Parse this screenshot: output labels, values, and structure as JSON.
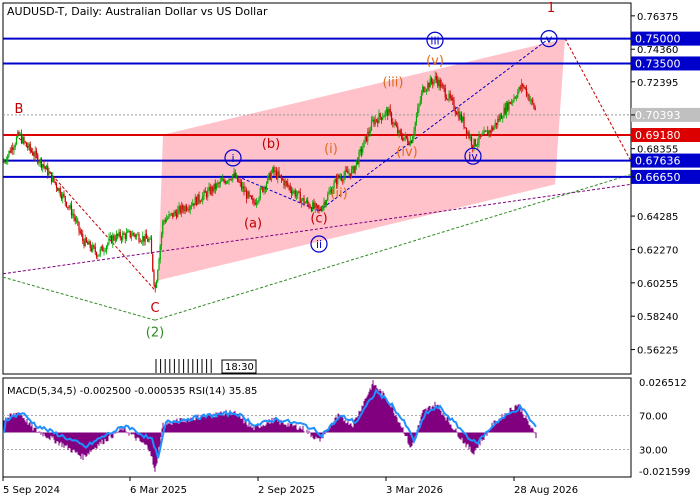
{
  "title": "AUDUSD-T, Daily:  Australian Dollar vs US Dollar",
  "macd_label": "MACD(5,34,5) -0.002500 -0.000535 RSI(14) 35.85",
  "time_box": "18:30",
  "colors": {
    "blue_level": "#0000cc",
    "red_level": "#dd0000",
    "channel_fill": "#ffb6c1",
    "bull_candle": "#00aa00",
    "bear_candle": "#cc0000",
    "macd_hist": "#800080",
    "macd_line": "#1e90ff",
    "wave_green": "#2e8b22",
    "wave_red": "#c00000",
    "wave_orange": "#e06a1a",
    "wave_blue": "#0000cc",
    "price_tag": "#c0c0c0"
  },
  "chart_data": {
    "type": "candlestick",
    "symbol": "AUDUSD-T",
    "timeframe": "Daily",
    "x_ticks": [
      "5 Sep 2024",
      "6 Mar 2025",
      "2 Sep 2025",
      "3 Mar 2026",
      "28 Aug 2026"
    ],
    "y_ticks": [
      0.76375,
      0.7436,
      0.72395,
      0.70393,
      0.68355,
      0.6665,
      0.64285,
      0.6227,
      0.60255,
      0.5824,
      0.56225
    ],
    "y_range": [
      0.5475,
      0.7715
    ],
    "current_price": 0.70393,
    "levels": [
      {
        "value": 0.75,
        "label": "0.75000",
        "color": "#0000cc"
      },
      {
        "value": 0.735,
        "label": "0.73500",
        "color": "#0000cc"
      },
      {
        "value": 0.6918,
        "label": "0.69180",
        "color": "#dd0000"
      },
      {
        "value": 0.67636,
        "label": "0.67636",
        "color": "#0000cc"
      },
      {
        "value": 0.6665,
        "label": "0.66650",
        "color": "#0000cc"
      }
    ],
    "price_path": [
      {
        "t": 0,
        "v": 0.675
      },
      {
        "t": 16,
        "v": 0.692
      },
      {
        "t": 20,
        "v": 0.688
      },
      {
        "t": 40,
        "v": 0.674
      },
      {
        "t": 55,
        "v": 0.66
      },
      {
        "t": 70,
        "v": 0.644
      },
      {
        "t": 80,
        "v": 0.628
      },
      {
        "t": 95,
        "v": 0.62
      },
      {
        "t": 110,
        "v": 0.63
      },
      {
        "t": 130,
        "v": 0.632
      },
      {
        "t": 147,
        "v": 0.628
      },
      {
        "t": 152,
        "v": 0.598
      },
      {
        "t": 160,
        "v": 0.64
      },
      {
        "t": 200,
        "v": 0.655
      },
      {
        "t": 230,
        "v": 0.668
      },
      {
        "t": 250,
        "v": 0.65
      },
      {
        "t": 270,
        "v": 0.67
      },
      {
        "t": 300,
        "v": 0.652
      },
      {
        "t": 316,
        "v": 0.646
      },
      {
        "t": 335,
        "v": 0.666
      },
      {
        "t": 350,
        "v": 0.67
      },
      {
        "t": 370,
        "v": 0.7
      },
      {
        "t": 385,
        "v": 0.706
      },
      {
        "t": 396,
        "v": 0.692
      },
      {
        "t": 408,
        "v": 0.688
      },
      {
        "t": 420,
        "v": 0.72
      },
      {
        "t": 433,
        "v": 0.726
      },
      {
        "t": 448,
        "v": 0.712
      },
      {
        "t": 460,
        "v": 0.7
      },
      {
        "t": 470,
        "v": 0.686
      },
      {
        "t": 490,
        "v": 0.696
      },
      {
        "t": 505,
        "v": 0.71
      },
      {
        "t": 520,
        "v": 0.722
      },
      {
        "t": 533,
        "v": 0.706
      }
    ],
    "waves": [
      {
        "label": "B",
        "color": "#c00000",
        "t": 16,
        "v": 0.705
      },
      {
        "label": "C",
        "color": "#c00000",
        "t": 152,
        "v": 0.585
      },
      {
        "label": "(2)",
        "color": "#2e8b22",
        "t": 152,
        "v": 0.57
      },
      {
        "label": "1",
        "color": "#c00000",
        "t": 548,
        "v": 0.766
      },
      {
        "label": "(a)",
        "color": "#c00000",
        "t": 250,
        "v": 0.636
      },
      {
        "label": "(b)",
        "color": "#c00000",
        "t": 268,
        "v": 0.684
      },
      {
        "label": "(c)",
        "color": "#c00000",
        "t": 316,
        "v": 0.639
      },
      {
        "label": "(i)",
        "color": "#e06a1a",
        "t": 328,
        "v": 0.681
      },
      {
        "label": "(ii)",
        "color": "#e06a1a",
        "t": 336,
        "v": 0.654
      },
      {
        "label": "(iii)",
        "color": "#e06a1a",
        "t": 390,
        "v": 0.721
      },
      {
        "label": "(iv)",
        "color": "#e06a1a",
        "t": 404,
        "v": 0.679
      },
      {
        "label": "(v)",
        "color": "#e06a1a",
        "t": 432,
        "v": 0.734
      }
    ],
    "circled_waves": [
      {
        "label": "i",
        "t": 230,
        "v": 0.678
      },
      {
        "label": "ii",
        "t": 316,
        "v": 0.626
      },
      {
        "label": "iii",
        "t": 432,
        "v": 0.749
      },
      {
        "label": "iv",
        "t": 470,
        "v": 0.679
      },
      {
        "label": "v",
        "t": 546,
        "v": 0.75
      }
    ],
    "channel": [
      {
        "t": 160,
        "v": 0.692
      },
      {
        "t": 562,
        "v": 0.75
      },
      {
        "t": 552,
        "v": 0.662
      },
      {
        "t": 155,
        "v": 0.604
      }
    ],
    "macd": {
      "label": "MACD(5,34,5) -0.002500 -0.000535 RSI(14) 35.85",
      "y_ticks": [
        0.026512,
        -0.021599
      ],
      "rsi_ticks": [
        70.0,
        30.0
      ],
      "hist_path": [
        {
          "t": 0,
          "v": 0.006
        },
        {
          "t": 16,
          "v": 0.01
        },
        {
          "t": 30,
          "v": 0.002
        },
        {
          "t": 60,
          "v": -0.006
        },
        {
          "t": 80,
          "v": -0.012
        },
        {
          "t": 95,
          "v": -0.006
        },
        {
          "t": 120,
          "v": 0.002
        },
        {
          "t": 147,
          "v": -0.008
        },
        {
          "t": 152,
          "v": -0.02
        },
        {
          "t": 160,
          "v": 0.004
        },
        {
          "t": 200,
          "v": 0.008
        },
        {
          "t": 230,
          "v": 0.01
        },
        {
          "t": 250,
          "v": 0.002
        },
        {
          "t": 270,
          "v": 0.006
        },
        {
          "t": 300,
          "v": 0.002
        },
        {
          "t": 316,
          "v": -0.004
        },
        {
          "t": 335,
          "v": 0.008
        },
        {
          "t": 350,
          "v": 0.004
        },
        {
          "t": 370,
          "v": 0.024
        },
        {
          "t": 385,
          "v": 0.016
        },
        {
          "t": 400,
          "v": 0.002
        },
        {
          "t": 408,
          "v": -0.008
        },
        {
          "t": 420,
          "v": 0.01
        },
        {
          "t": 433,
          "v": 0.014
        },
        {
          "t": 460,
          "v": -0.004
        },
        {
          "t": 470,
          "v": -0.01
        },
        {
          "t": 490,
          "v": 0.004
        },
        {
          "t": 515,
          "v": 0.014
        },
        {
          "t": 533,
          "v": -0.002
        }
      ]
    },
    "grid": false
  }
}
